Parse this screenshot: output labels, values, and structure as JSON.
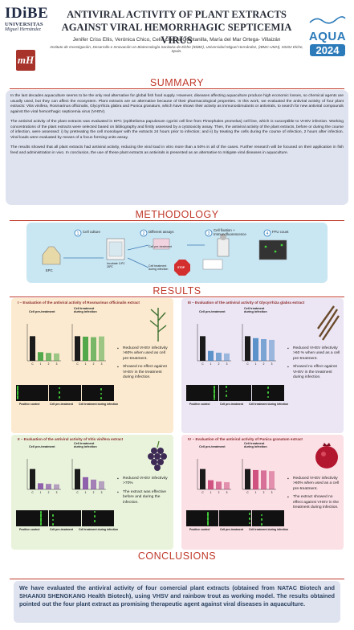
{
  "header": {
    "logo_big": "IDiBE",
    "logo_sub1": "UNIVERSITAS",
    "logo_sub2": "Miguel Hernández",
    "logo_mh": "mH",
    "title_line1": "ANTIVIRAL ACTIVITY OF PLANT EXTRACTS",
    "title_line2": "AGAINST VIRAL HEMORRHAGIC SEPTICEMIA VIRUS",
    "aqua_word": "AQUA",
    "aqua_year": "2024",
    "authors": "Jenifer Criss Ellis, Verónica Chico, Celia García-Quintanilla, María del Mar Ortega- Villaizán",
    "affiliation": "Instituto de Investigación, Desarrollo e Innovación en Biotecnología Sanitaria de Elche (IDiBE), Universidad Miguel Hernández, (IBMC-UMH), 03202 Elche, Spain."
  },
  "summary": {
    "heading": "SUMMARY",
    "p1": "In the last decades aquaculture seems to be the only real alternative for global fish food supply. However, diseases affecting aquaculture produce high economic losses, so chemical agents are usually used, but they can affect the ecosystem. Plant extracts are an alternative because of their pharmacological properties. In this work, we evaluated the antiviral activity of four plant extracts: Vitis vinifera, Rosmarinus officinalis, Glycyrrhiza glabra and Punica granatum, which have shown their activity as immunostimulants or antivirals, to search for new antiviral compounds against the viral hemorrhagic septicemia virus (VHSV).",
    "p2": "The antiviral activity of the plant extracts was evaluated in EPC (epithelioma papulosum cyprini cell line from Pimephales promelas) cell line, which is susceptible to VHSV infection. Working concentrations of the plant extracts were selected based on bibliography and firstly assessed by a cytotoxicity assay. Then, the antiviral activity of the plant extracts, before or during the course of infection, were assessed: i) by pretreating the cell monolayer with the extracts 24 hours prior to infection; and ii) by treating the cells during the course of infection, 2 hours after infection. Viral loads were evaluated by means of a focus forming units assay.",
    "p3": "The results showed that all plant extracts had antiviral activity, reducing the viral load in vitro more than a 50% in all of the cases. Further research will be focused on their application in fish feed and administration in vivo. In conclusion, the use of these plant extracts as antivirals is presented as an alternative to mitigate viral diseases in aquaculture."
  },
  "methodology": {
    "heading": "METHODOLOGY",
    "step1": "Cell culture",
    "step2": "Different assays",
    "step3": "Cell fixation + Immunofluorescence",
    "step4": "FFU count",
    "epc": "EPC",
    "incubate": "Incubate 14ºC 28ºC",
    "pre_treatment": "Cell pre-treatment",
    "treatment": "Cell treatment during infection",
    "stop": "STOP"
  },
  "results": {
    "heading": "RESULTS",
    "panels": [
      {
        "title": "I – Evaluation of the antiviral activity of Rosmarinus officinalis extract",
        "chart_a": "Cell pre-treatment",
        "chart_b": "Cell treatment during infection",
        "bullets": [
          "Reduced VHSV infectivity >60% when used as cell pre-treatment.",
          "Showed no effect against VHSV in the treatment during infection."
        ],
        "labels": [
          "Positive control",
          "Cell pre-treatment",
          "Cell treatment during infection"
        ]
      },
      {
        "title": "III – Evaluation of the antiviral activity of Glycyrrhiza glabra extract",
        "chart_a": "Cell pre-treatment",
        "chart_b": "Cell treatment during infection",
        "bullets": [
          "Reduced VHSV infectivity >60 % when used as a cell pre-treatment.",
          "Showed no effect against VHSV in the treatment during infection."
        ],
        "labels": [
          "Positive control",
          "Cell pre-treatment",
          "Cell treatment during infection"
        ]
      },
      {
        "title": "II – Evaluation of the antiviral activity of Vitis vinifera extract",
        "chart_a": "Cell pre-treatment",
        "chart_b": "Cell treatment during infection",
        "bullets": [
          "Reduced VHSV infectivity >70%",
          "The extract was effective before and during the infection."
        ],
        "labels": [
          "Positive control",
          "Cell pre-treatment",
          "Cell treatment during infection"
        ]
      },
      {
        "title": "IV – Evaluation of the antiviral activity of Punica granatum extract",
        "chart_a": "Cell pre-treatment",
        "chart_b": "Cell treatment during infection",
        "bullets": [
          "Reduced VHSV infectivity >60% when used as a cell pre-treatment.",
          "The extract showed no effect against VHSV in the treatment during infection."
        ],
        "labels": [
          "Positive control",
          "Cell pre-treatment",
          "Cell treatment during infection"
        ]
      }
    ]
  },
  "conclusions": {
    "heading": "CONCLUSIONS",
    "text": "We have evaluated the antiviral activity of four comercial plant extracts (obtained from NATAC Biotech and SHAANXI SHENGKANG Health Biotech), using VHSV and rainbow trout as working model. The results obtained pointed out the four plant extract as promising therapeutic agent against viral diseases in aquaculture."
  },
  "colors": {
    "accent": "#c0392b",
    "rosmarinus_bars": "#2e9a2e",
    "glycyrrhiza_bars": "#3a7fc0",
    "vitis_bars": "#7b3fa0",
    "punica_bars": "#c4326a"
  },
  "chart_data": [
    {
      "type": "bar",
      "panel": "I",
      "title": "Cell pre-treatment",
      "categories": [
        "C",
        "1",
        "2",
        "3"
      ],
      "values": [
        100,
        35,
        32,
        30
      ],
      "ylim": [
        0,
        150
      ]
    },
    {
      "type": "bar",
      "panel": "I",
      "title": "Cell treatment during infection",
      "categories": [
        "C",
        "1",
        "2",
        "3"
      ],
      "values": [
        100,
        98,
        96,
        99
      ],
      "ylim": [
        0,
        150
      ]
    },
    {
      "type": "bar",
      "panel": "III",
      "title": "Cell pre-treatment",
      "categories": [
        "C",
        "1",
        "2",
        "3"
      ],
      "values": [
        100,
        40,
        33,
        30
      ],
      "ylim": [
        0,
        150
      ]
    },
    {
      "type": "bar",
      "panel": "III",
      "title": "Cell treatment during infection",
      "categories": [
        "C",
        "1",
        "2",
        "3"
      ],
      "values": [
        100,
        92,
        88,
        85
      ],
      "ylim": [
        0,
        150
      ]
    },
    {
      "type": "bar",
      "panel": "II",
      "title": "Cell pre-treatment",
      "categories": [
        "C",
        "1",
        "2",
        "3"
      ],
      "values": [
        100,
        30,
        27,
        25
      ],
      "ylim": [
        0,
        150
      ]
    },
    {
      "type": "bar",
      "panel": "II",
      "title": "Cell treatment during infection",
      "categories": [
        "C",
        "1",
        "2",
        "3"
      ],
      "values": [
        100,
        60,
        48,
        40
      ],
      "ylim": [
        0,
        150
      ]
    },
    {
      "type": "bar",
      "panel": "IV",
      "title": "Cell pre-treatment",
      "categories": [
        "C",
        "1",
        "2",
        "3"
      ],
      "values": [
        100,
        45,
        38,
        35
      ],
      "ylim": [
        0,
        150
      ]
    },
    {
      "type": "bar",
      "panel": "IV",
      "title": "Cell treatment during infection",
      "categories": [
        "C",
        "1",
        "2",
        "3"
      ],
      "values": [
        100,
        95,
        93,
        90
      ],
      "ylim": [
        0,
        150
      ]
    }
  ]
}
